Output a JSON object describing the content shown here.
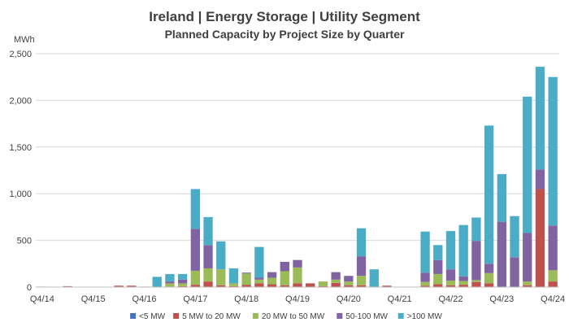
{
  "chart_data": {
    "type": "bar",
    "stacked": true,
    "title": "Ireland | Energy Storage | Utility Segment",
    "subtitle": "Planned Capacity by Project Size by Quarter",
    "ylabel": "MWh",
    "ylim": [
      0,
      2500
    ],
    "yticks": [
      "0",
      "500",
      "1,000",
      "1,500",
      "2,000",
      "2,500"
    ],
    "ytick_values": [
      0,
      500,
      1000,
      1500,
      2000,
      2500
    ],
    "grid": true,
    "legend_position": "bottom",
    "categories": [
      "Q4/14",
      "Q1/15",
      "Q2/15",
      "Q3/15",
      "Q4/15",
      "Q1/16",
      "Q2/16",
      "Q3/16",
      "Q4/16",
      "Q1/17",
      "Q2/17",
      "Q3/17",
      "Q4/17",
      "Q1/18",
      "Q2/18",
      "Q3/18",
      "Q4/18",
      "Q1/19",
      "Q2/19",
      "Q3/19",
      "Q4/19",
      "Q1/20",
      "Q2/20",
      "Q3/20",
      "Q4/20",
      "Q1/21",
      "Q2/21",
      "Q3/21",
      "Q4/21",
      "Q1/22",
      "Q2/22",
      "Q3/22",
      "Q4/22",
      "Q1/23",
      "Q2/23",
      "Q3/23",
      "Q4/23",
      "Q1/24",
      "Q2/24",
      "Q3/24",
      "Q4/24"
    ],
    "xtick_labels": [
      "Q4/14",
      "Q4/15",
      "Q4/16",
      "Q4/17",
      "Q4/18",
      "Q4/19",
      "Q4/20",
      "Q4/21",
      "Q4/22",
      "Q4/23",
      "Q4/24"
    ],
    "series": [
      {
        "name": "<5 MW",
        "color": "#4472C4",
        "values": [
          5,
          0,
          5,
          0,
          0,
          0,
          0,
          0,
          0,
          0,
          0,
          0,
          0,
          0,
          0,
          0,
          0,
          0,
          0,
          0,
          0,
          0,
          0,
          0,
          0,
          0,
          0,
          0,
          0,
          0,
          0,
          0,
          0,
          0,
          0,
          0,
          0,
          0,
          0,
          0,
          0
        ]
      },
      {
        "name": "5 MW to 20 MW",
        "color": "#C0504D",
        "values": [
          0,
          0,
          5,
          0,
          0,
          0,
          15,
          15,
          5,
          0,
          0,
          10,
          25,
          60,
          20,
          10,
          25,
          40,
          30,
          20,
          40,
          40,
          10,
          45,
          20,
          20,
          0,
          15,
          0,
          0,
          15,
          30,
          20,
          25,
          55,
          40,
          0,
          0,
          20,
          1050,
          60
        ]
      },
      {
        "name": "20 MW to 50 MW",
        "color": "#9BBB59",
        "values": [
          0,
          0,
          0,
          0,
          0,
          0,
          0,
          0,
          0,
          0,
          40,
          30,
          150,
          140,
          170,
          30,
          120,
          40,
          70,
          150,
          170,
          0,
          50,
          35,
          40,
          100,
          0,
          0,
          0,
          0,
          40,
          110,
          50,
          40,
          20,
          110,
          0,
          0,
          40,
          0,
          120
        ]
      },
      {
        "name": "50-100 MW",
        "color": "#8064A2",
        "values": [
          0,
          0,
          0,
          0,
          0,
          0,
          0,
          0,
          0,
          0,
          20,
          40,
          450,
          250,
          0,
          0,
          10,
          20,
          60,
          100,
          80,
          0,
          0,
          80,
          60,
          210,
          0,
          0,
          0,
          0,
          100,
          150,
          120,
          50,
          420,
          100,
          700,
          320,
          520,
          210,
          480
        ]
      },
      {
        "name": ">100 MW",
        "color": "#4BACC6",
        "values": [
          0,
          0,
          0,
          0,
          0,
          0,
          0,
          0,
          0,
          110,
          80,
          60,
          425,
          300,
          300,
          160,
          0,
          330,
          0,
          0,
          0,
          0,
          0,
          0,
          0,
          300,
          190,
          0,
          0,
          0,
          440,
          160,
          410,
          550,
          250,
          1480,
          510,
          440,
          1460,
          1100,
          1590
        ]
      }
    ]
  }
}
